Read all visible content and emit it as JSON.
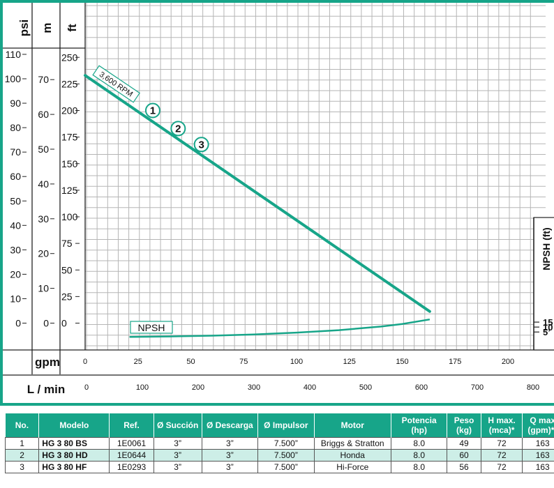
{
  "axes": {
    "psi": {
      "label": "psi",
      "ticks": [
        "0",
        "10",
        "20",
        "30",
        "40",
        "50",
        "60",
        "70",
        "80",
        "90",
        "100",
        "110"
      ]
    },
    "m": {
      "label": "m",
      "ticks": [
        "0",
        "10",
        "20",
        "30",
        "40",
        "50",
        "60",
        "70"
      ]
    },
    "ft": {
      "label": "ft",
      "ticks": [
        "0",
        "25",
        "50",
        "75",
        "100",
        "125",
        "150",
        "175",
        "200",
        "225",
        "250"
      ]
    },
    "gpm": {
      "label": "gpm",
      "ticks": [
        "0",
        "25",
        "50",
        "75",
        "100",
        "125",
        "150",
        "175",
        "200"
      ]
    },
    "lmin": {
      "label": "L / min",
      "ticks": [
        "0",
        "100",
        "200",
        "300",
        "400",
        "500",
        "600",
        "700",
        "800"
      ]
    },
    "npsh": {
      "label": "NPSH (ft)",
      "ticks": [
        "15",
        "10",
        "5’"
      ]
    }
  },
  "colors": {
    "frame": "#17a589",
    "curve": "#17a589",
    "grid": "#b5b5b5",
    "row_alt": "#cdeee7"
  },
  "chart_data": {
    "type": "line",
    "xlabel": "gpm",
    "x_secondary_label": "L / min",
    "ylabel": "ft",
    "y_secondary_labels": [
      "psi",
      "m"
    ],
    "xlim": [
      0,
      220
    ],
    "ylim": [
      -13,
      278
    ],
    "grid": true,
    "series": [
      {
        "name": "3,600 RPM",
        "x": [
          0,
          163
        ],
        "y": [
          233,
          11
        ]
      },
      {
        "name": "NPSH",
        "x": [
          21,
          40,
          60,
          80,
          100,
          120,
          140,
          150,
          163
        ],
        "y": [
          -13,
          -12.5,
          -11.8,
          -10.6,
          -8.9,
          -6.6,
          -3.2,
          -0.8,
          3.5
        ]
      }
    ],
    "markers": [
      {
        "label": "1",
        "x": 32,
        "y": 200
      },
      {
        "label": "2",
        "x": 44,
        "y": 183
      },
      {
        "label": "3",
        "x": 55,
        "y": 168
      }
    ]
  },
  "table": {
    "headers": [
      "No.",
      "Modelo",
      "Ref.",
      "Ø Succión",
      "Ø Descarga",
      "Ø Impulsor",
      "Motor",
      "Potencia (hp)",
      "Peso (kg)",
      "H max. (mca)*",
      "Q max (gpm)**"
    ],
    "rows": [
      [
        "1",
        "HG 3 80 BS",
        "1E0061",
        "3”",
        "3”",
        "7.500”",
        "Briggs & Stratton",
        "8.0",
        "49",
        "72",
        "163"
      ],
      [
        "2",
        "HG 3 80 HD",
        "1E0644",
        "3”",
        "3”",
        "7.500”",
        "Honda",
        "8.0",
        "60",
        "72",
        "163"
      ],
      [
        "3",
        "HG 3 80 HF",
        "1E0293",
        "3”",
        "3”",
        "7.500”",
        "Hi-Force",
        "8.0",
        "56",
        "72",
        "163"
      ]
    ]
  }
}
